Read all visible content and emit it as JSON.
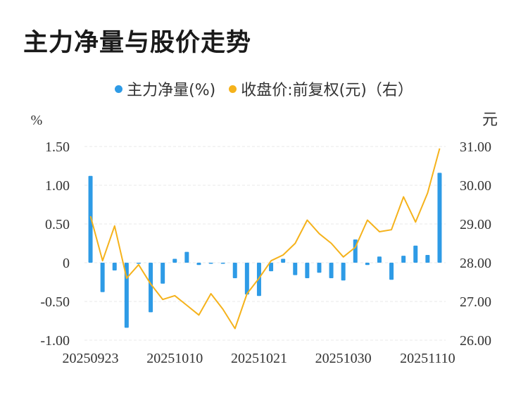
{
  "title": "主力净量与股价走势",
  "legend": {
    "left_label": "主力净量(%)",
    "right_label": "收盘价:前复权(元)（右）"
  },
  "colors": {
    "bar": "#2e9be6",
    "line": "#f5b21b",
    "grid": "#e8e8e8",
    "text": "#333333"
  },
  "chart_data": {
    "type": "bar+line",
    "y_left": {
      "label": "%",
      "ylim": [
        -1.0,
        1.5
      ],
      "ticks": [
        {
          "v": 1.5,
          "t": "1.50"
        },
        {
          "v": 1.0,
          "t": "1.00"
        },
        {
          "v": 0.5,
          "t": "0.50"
        },
        {
          "v": 0,
          "t": "0"
        },
        {
          "v": -0.5,
          "t": "-0.50"
        },
        {
          "v": -1.0,
          "t": "-1.00"
        }
      ]
    },
    "y_right": {
      "label": "元",
      "ylim": [
        26.0,
        31.0
      ],
      "ticks": [
        {
          "v": 31,
          "t": "31.00"
        },
        {
          "v": 30,
          "t": "30.00"
        },
        {
          "v": 29,
          "t": "29.00"
        },
        {
          "v": 28,
          "t": "28.00"
        },
        {
          "v": 27,
          "t": "27.00"
        },
        {
          "v": 26,
          "t": "26.00"
        }
      ]
    },
    "x_tick_labels": [
      {
        "i": 0,
        "t": "20250923"
      },
      {
        "i": 7,
        "t": "20251010"
      },
      {
        "i": 14,
        "t": "20251021"
      },
      {
        "i": 21,
        "t": "20251030"
      },
      {
        "i": 28,
        "t": "20251110"
      }
    ],
    "main_net": [
      1.12,
      -0.38,
      -0.1,
      -0.84,
      -0.01,
      -0.64,
      -0.27,
      0.05,
      0.14,
      -0.03,
      -0.01,
      -0.01,
      -0.2,
      -0.41,
      -0.43,
      -0.11,
      0.05,
      -0.16,
      -0.2,
      -0.13,
      -0.2,
      -0.23,
      0.3,
      -0.03,
      0.08,
      -0.22,
      0.09,
      0.22,
      0.1,
      1.16
    ],
    "close_price": [
      29.2,
      28.05,
      28.95,
      27.6,
      27.95,
      27.45,
      27.05,
      27.15,
      26.9,
      26.65,
      27.2,
      26.8,
      26.3,
      27.2,
      27.6,
      28.05,
      28.2,
      28.5,
      29.1,
      28.75,
      28.5,
      28.15,
      28.4,
      29.1,
      28.8,
      28.85,
      29.7,
      29.05,
      29.8,
      30.95
    ]
  }
}
